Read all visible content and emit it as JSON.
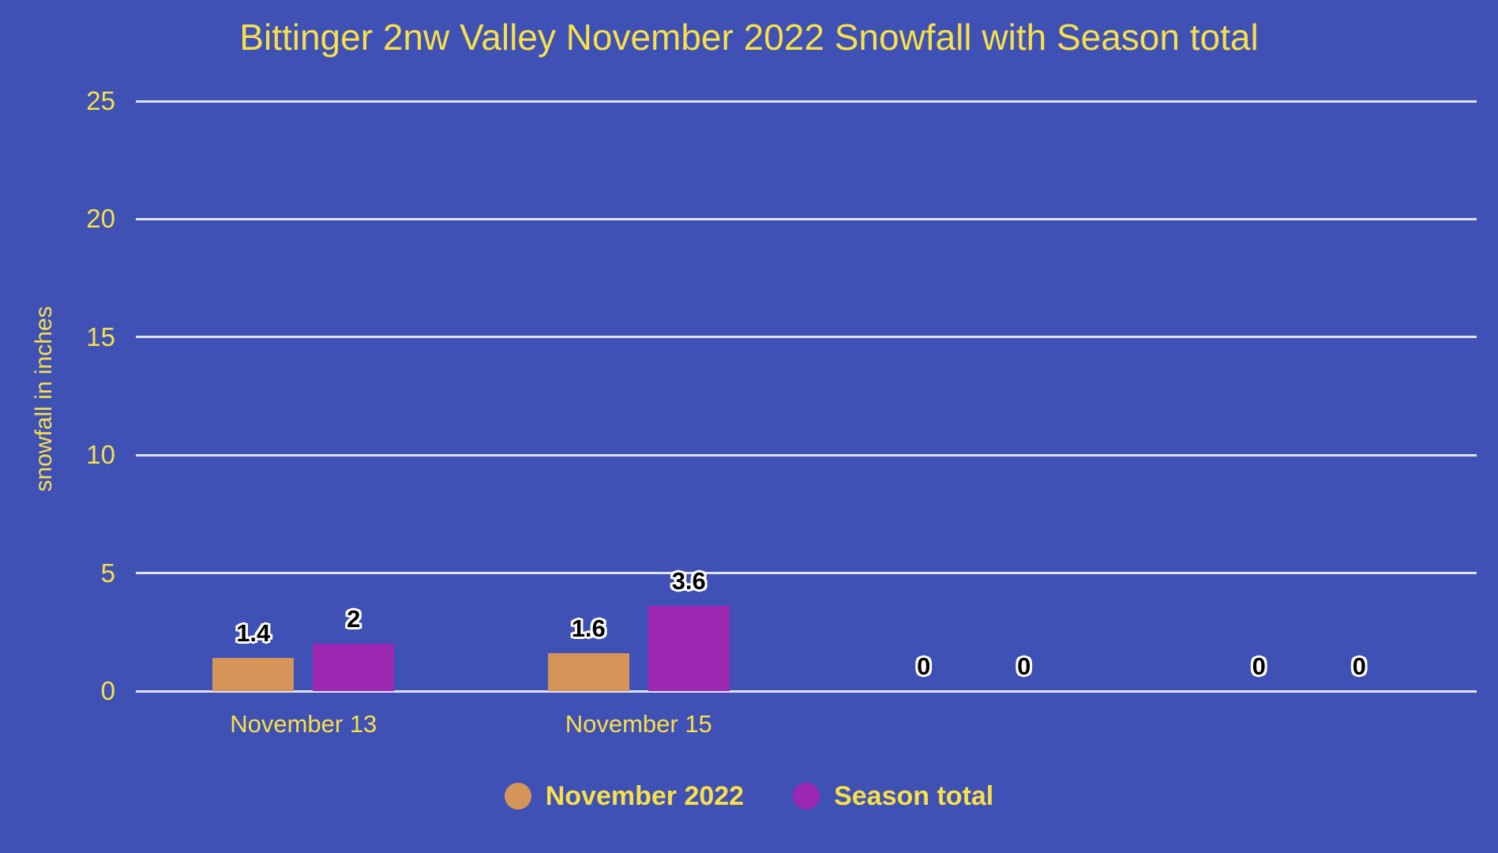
{
  "title": "Bittinger 2nw Valley November 2022 Snowfall with Season total",
  "colors": {
    "background": "#3f51b5",
    "title_text": "#f7e04a",
    "axis_text": "#f7e04a",
    "gridline": "#dfe3f3",
    "data_label_text": "#000000",
    "data_label_outline": "#ffffff",
    "series_november_2022": "#d59458",
    "series_season_total": "#9c27b0"
  },
  "chart_data": {
    "type": "bar",
    "title": "Bittinger 2nw Valley November 2022 Snowfall with Season total",
    "categories": [
      "November 13",
      "November 15",
      "",
      ""
    ],
    "series": [
      {
        "name": "November 2022",
        "color": "#d59458",
        "values": [
          1.4,
          1.6,
          0,
          0
        ]
      },
      {
        "name": "Season total",
        "color": "#9c27b0",
        "values": [
          2,
          3.6,
          0,
          0
        ]
      }
    ],
    "data_labels_shown": [
      "1.4",
      "2",
      "1.6",
      "3.6",
      "0",
      "0",
      "0",
      "0"
    ],
    "xlabel": "",
    "ylabel": "snowfall in inches",
    "ylim": [
      0,
      25
    ],
    "yticks": [
      0,
      5,
      10,
      15,
      20,
      25
    ],
    "grid": true,
    "legend_position": "bottom"
  }
}
